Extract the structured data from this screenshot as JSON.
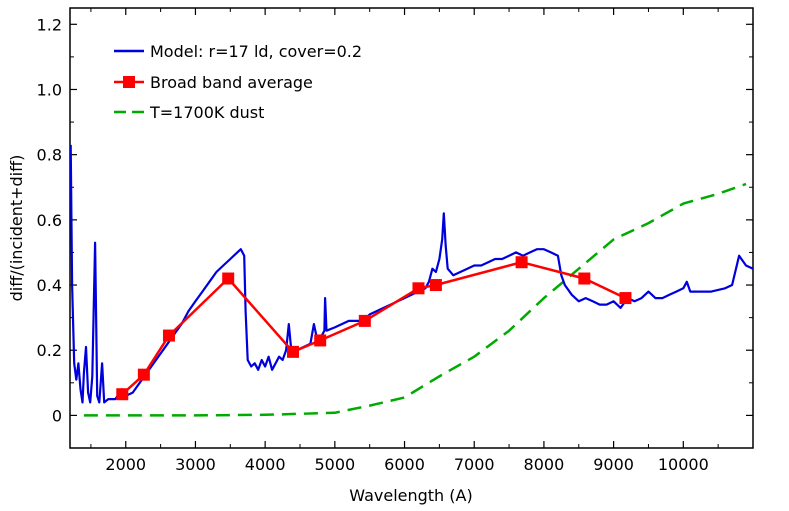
{
  "chart_data": {
    "type": "line",
    "title": "",
    "xlabel": "Wavelength (A)",
    "ylabel": "diff/(incident+diff)",
    "xlim": [
      1200,
      11000
    ],
    "ylim": [
      -0.1,
      1.25
    ],
    "x_ticks": [
      2000,
      3000,
      4000,
      5000,
      6000,
      7000,
      8000,
      9000,
      10000
    ],
    "x_tick_labels": [
      "2000",
      "3000",
      "4000",
      "5000",
      "6000",
      "7000",
      "8000",
      "9000",
      "10000"
    ],
    "y_ticks": [
      0,
      0.2,
      0.4,
      0.6,
      0.8,
      1.0,
      1.2
    ],
    "y_tick_labels": [
      "0",
      "0.2",
      "0.4",
      "0.6",
      "0.8",
      "1.0",
      "1.2"
    ],
    "grid": false,
    "legend_position": "top-left",
    "series": [
      {
        "name": "Model: r=17 ld, cover=0.2",
        "color": "#0000dd",
        "style": "solid",
        "points": [
          [
            1210,
            0.83
          ],
          [
            1230,
            0.4
          ],
          [
            1260,
            0.16
          ],
          [
            1290,
            0.11
          ],
          [
            1320,
            0.16
          ],
          [
            1350,
            0.08
          ],
          [
            1380,
            0.04
          ],
          [
            1400,
            0.13
          ],
          [
            1430,
            0.21
          ],
          [
            1460,
            0.07
          ],
          [
            1490,
            0.04
          ],
          [
            1520,
            0.12
          ],
          [
            1560,
            0.53
          ],
          [
            1590,
            0.06
          ],
          [
            1620,
            0.04
          ],
          [
            1660,
            0.16
          ],
          [
            1690,
            0.04
          ],
          [
            1750,
            0.05
          ],
          [
            1850,
            0.05
          ],
          [
            1950,
            0.08
          ],
          [
            2000,
            0.06
          ],
          [
            2100,
            0.07
          ],
          [
            2200,
            0.1
          ],
          [
            2300,
            0.13
          ],
          [
            2400,
            0.16
          ],
          [
            2500,
            0.19
          ],
          [
            2600,
            0.22
          ],
          [
            2700,
            0.25
          ],
          [
            2800,
            0.28
          ],
          [
            2900,
            0.32
          ],
          [
            3000,
            0.35
          ],
          [
            3100,
            0.38
          ],
          [
            3200,
            0.41
          ],
          [
            3300,
            0.44
          ],
          [
            3400,
            0.46
          ],
          [
            3500,
            0.48
          ],
          [
            3600,
            0.5
          ],
          [
            3650,
            0.51
          ],
          [
            3700,
            0.49
          ],
          [
            3720,
            0.32
          ],
          [
            3750,
            0.17
          ],
          [
            3800,
            0.15
          ],
          [
            3850,
            0.16
          ],
          [
            3900,
            0.14
          ],
          [
            3950,
            0.17
          ],
          [
            4000,
            0.15
          ],
          [
            4050,
            0.18
          ],
          [
            4100,
            0.14
          ],
          [
            4150,
            0.16
          ],
          [
            4200,
            0.18
          ],
          [
            4250,
            0.17
          ],
          [
            4300,
            0.2
          ],
          [
            4340,
            0.28
          ],
          [
            4380,
            0.19
          ],
          [
            4450,
            0.2
          ],
          [
            4550,
            0.21
          ],
          [
            4650,
            0.22
          ],
          [
            4700,
            0.28
          ],
          [
            4750,
            0.23
          ],
          [
            4800,
            0.24
          ],
          [
            4850,
            0.26
          ],
          [
            4861,
            0.36
          ],
          [
            4880,
            0.26
          ],
          [
            5000,
            0.27
          ],
          [
            5100,
            0.28
          ],
          [
            5200,
            0.29
          ],
          [
            5300,
            0.29
          ],
          [
            5400,
            0.29
          ],
          [
            5500,
            0.31
          ],
          [
            5600,
            0.32
          ],
          [
            5700,
            0.33
          ],
          [
            5800,
            0.34
          ],
          [
            5900,
            0.35
          ],
          [
            6000,
            0.36
          ],
          [
            6100,
            0.37
          ],
          [
            6200,
            0.38
          ],
          [
            6300,
            0.39
          ],
          [
            6350,
            0.41
          ],
          [
            6400,
            0.45
          ],
          [
            6450,
            0.44
          ],
          [
            6500,
            0.48
          ],
          [
            6540,
            0.54
          ],
          [
            6563,
            0.62
          ],
          [
            6590,
            0.52
          ],
          [
            6620,
            0.45
          ],
          [
            6700,
            0.43
          ],
          [
            6800,
            0.44
          ],
          [
            6900,
            0.45
          ],
          [
            7000,
            0.46
          ],
          [
            7100,
            0.46
          ],
          [
            7200,
            0.47
          ],
          [
            7300,
            0.48
          ],
          [
            7400,
            0.48
          ],
          [
            7500,
            0.49
          ],
          [
            7600,
            0.5
          ],
          [
            7700,
            0.49
          ],
          [
            7800,
            0.5
          ],
          [
            7900,
            0.51
          ],
          [
            8000,
            0.51
          ],
          [
            8100,
            0.5
          ],
          [
            8200,
            0.49
          ],
          [
            8250,
            0.43
          ],
          [
            8300,
            0.4
          ],
          [
            8400,
            0.37
          ],
          [
            8500,
            0.35
          ],
          [
            8600,
            0.36
          ],
          [
            8700,
            0.35
          ],
          [
            8800,
            0.34
          ],
          [
            8900,
            0.34
          ],
          [
            9000,
            0.35
          ],
          [
            9100,
            0.33
          ],
          [
            9200,
            0.36
          ],
          [
            9300,
            0.35
          ],
          [
            9400,
            0.36
          ],
          [
            9500,
            0.38
          ],
          [
            9600,
            0.36
          ],
          [
            9700,
            0.36
          ],
          [
            9800,
            0.37
          ],
          [
            9900,
            0.38
          ],
          [
            10000,
            0.39
          ],
          [
            10050,
            0.41
          ],
          [
            10100,
            0.38
          ],
          [
            10200,
            0.38
          ],
          [
            10400,
            0.38
          ],
          [
            10600,
            0.39
          ],
          [
            10700,
            0.4
          ],
          [
            10800,
            0.49
          ],
          [
            10900,
            0.46
          ],
          [
            11000,
            0.45
          ]
        ]
      },
      {
        "name": "Broad band average",
        "color": "#ff0000",
        "style": "solid-markers",
        "points": [
          [
            1950,
            0.065
          ],
          [
            2260,
            0.125
          ],
          [
            2620,
            0.245
          ],
          [
            3470,
            0.42
          ],
          [
            4400,
            0.195
          ],
          [
            4790,
            0.23
          ],
          [
            5430,
            0.29
          ],
          [
            6200,
            0.39
          ],
          [
            6450,
            0.4
          ],
          [
            7680,
            0.47
          ],
          [
            8580,
            0.42
          ],
          [
            9170,
            0.36
          ]
        ]
      },
      {
        "name": "T=1700K dust",
        "color": "#00aa00",
        "style": "dashed",
        "points": [
          [
            1400,
            0.0
          ],
          [
            2000,
            0.0
          ],
          [
            3000,
            0.0
          ],
          [
            4000,
            0.002
          ],
          [
            5000,
            0.008
          ],
          [
            5500,
            0.03
          ],
          [
            6000,
            0.055
          ],
          [
            6500,
            0.12
          ],
          [
            7000,
            0.18
          ],
          [
            7500,
            0.26
          ],
          [
            8000,
            0.36
          ],
          [
            8500,
            0.45
          ],
          [
            9000,
            0.54
          ],
          [
            9500,
            0.59
          ],
          [
            10000,
            0.65
          ],
          [
            10500,
            0.68
          ],
          [
            10900,
            0.71
          ]
        ]
      }
    ]
  }
}
